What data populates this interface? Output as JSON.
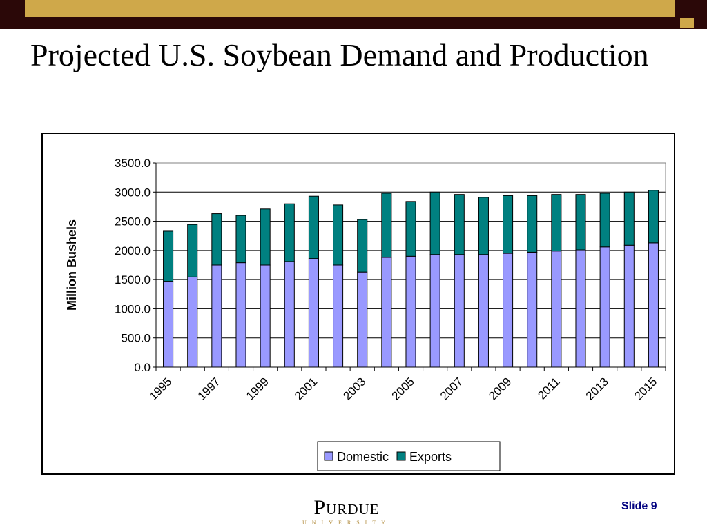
{
  "slide": {
    "title": "Projected U.S. Soybean Demand and Production",
    "slide_number": "Slide 9",
    "logo": {
      "main": "Purdue",
      "sub": "UNIVERSITY"
    },
    "colors": {
      "dark_bar": "#2b0808",
      "gold": "#cfa84a",
      "slide_number": "#000080"
    }
  },
  "chart_data": {
    "type": "bar",
    "stacked": true,
    "title": "",
    "xlabel": "",
    "ylabel": "Million Bushels",
    "ylim": [
      0,
      3500
    ],
    "y_ticks": [
      "0.0",
      "500.0",
      "1000.0",
      "1500.0",
      "2000.0",
      "2500.0",
      "3000.0",
      "3500.0"
    ],
    "categories": [
      "1995",
      "1996",
      "1997",
      "1998",
      "1999",
      "2000",
      "2001",
      "2002",
      "2003",
      "2004",
      "2005",
      "2006",
      "2007",
      "2008",
      "2009",
      "2010",
      "2011",
      "2012",
      "2013",
      "2014",
      "2015"
    ],
    "x_tick_labels": [
      "1995",
      "1997",
      "1999",
      "2001",
      "2003",
      "2005",
      "2007",
      "2009",
      "2011",
      "2013",
      "2015"
    ],
    "grid": "horizontal",
    "legend_position": "bottom",
    "series": [
      {
        "name": "Domestic",
        "color": "#9999ff",
        "values": [
          1470,
          1545,
          1750,
          1790,
          1750,
          1810,
          1860,
          1750,
          1630,
          1880,
          1900,
          1930,
          1930,
          1930,
          1950,
          1970,
          1990,
          2010,
          2060,
          2090,
          2130
        ]
      },
      {
        "name": "Exports",
        "color": "#008080",
        "values": [
          860,
          900,
          880,
          810,
          960,
          990,
          1070,
          1030,
          900,
          1100,
          940,
          1070,
          1030,
          980,
          990,
          970,
          970,
          950,
          920,
          910,
          900
        ]
      }
    ]
  }
}
